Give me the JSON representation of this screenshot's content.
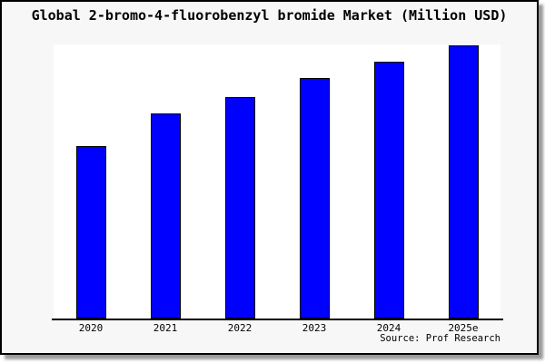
{
  "chart_data": {
    "type": "bar",
    "title": "Global 2-bromo-4-fluorobenzyl bromide Market (Million USD)",
    "categories": [
      "2020",
      "2021",
      "2022",
      "2023",
      "2024",
      "2025e"
    ],
    "values": [
      63,
      75,
      81,
      88,
      94,
      100
    ],
    "value_note": "y-axis has no tick labels; values are relative bar heights indexed to 2025e = 100",
    "xlabel": "",
    "ylabel": "",
    "ylim": [
      0,
      100
    ],
    "grid": false,
    "legend_position": "none",
    "bar_color": "#0000FF",
    "bar_border_color": "#000000"
  },
  "footer": {
    "source_label": "Source: Prof Research"
  },
  "colors": {
    "card_background": "#F7F7F7",
    "plot_background": "#FFFFFF",
    "card_border": "#000000",
    "axis_line": "#000000",
    "shadow": "#999999",
    "text": "#000000"
  }
}
